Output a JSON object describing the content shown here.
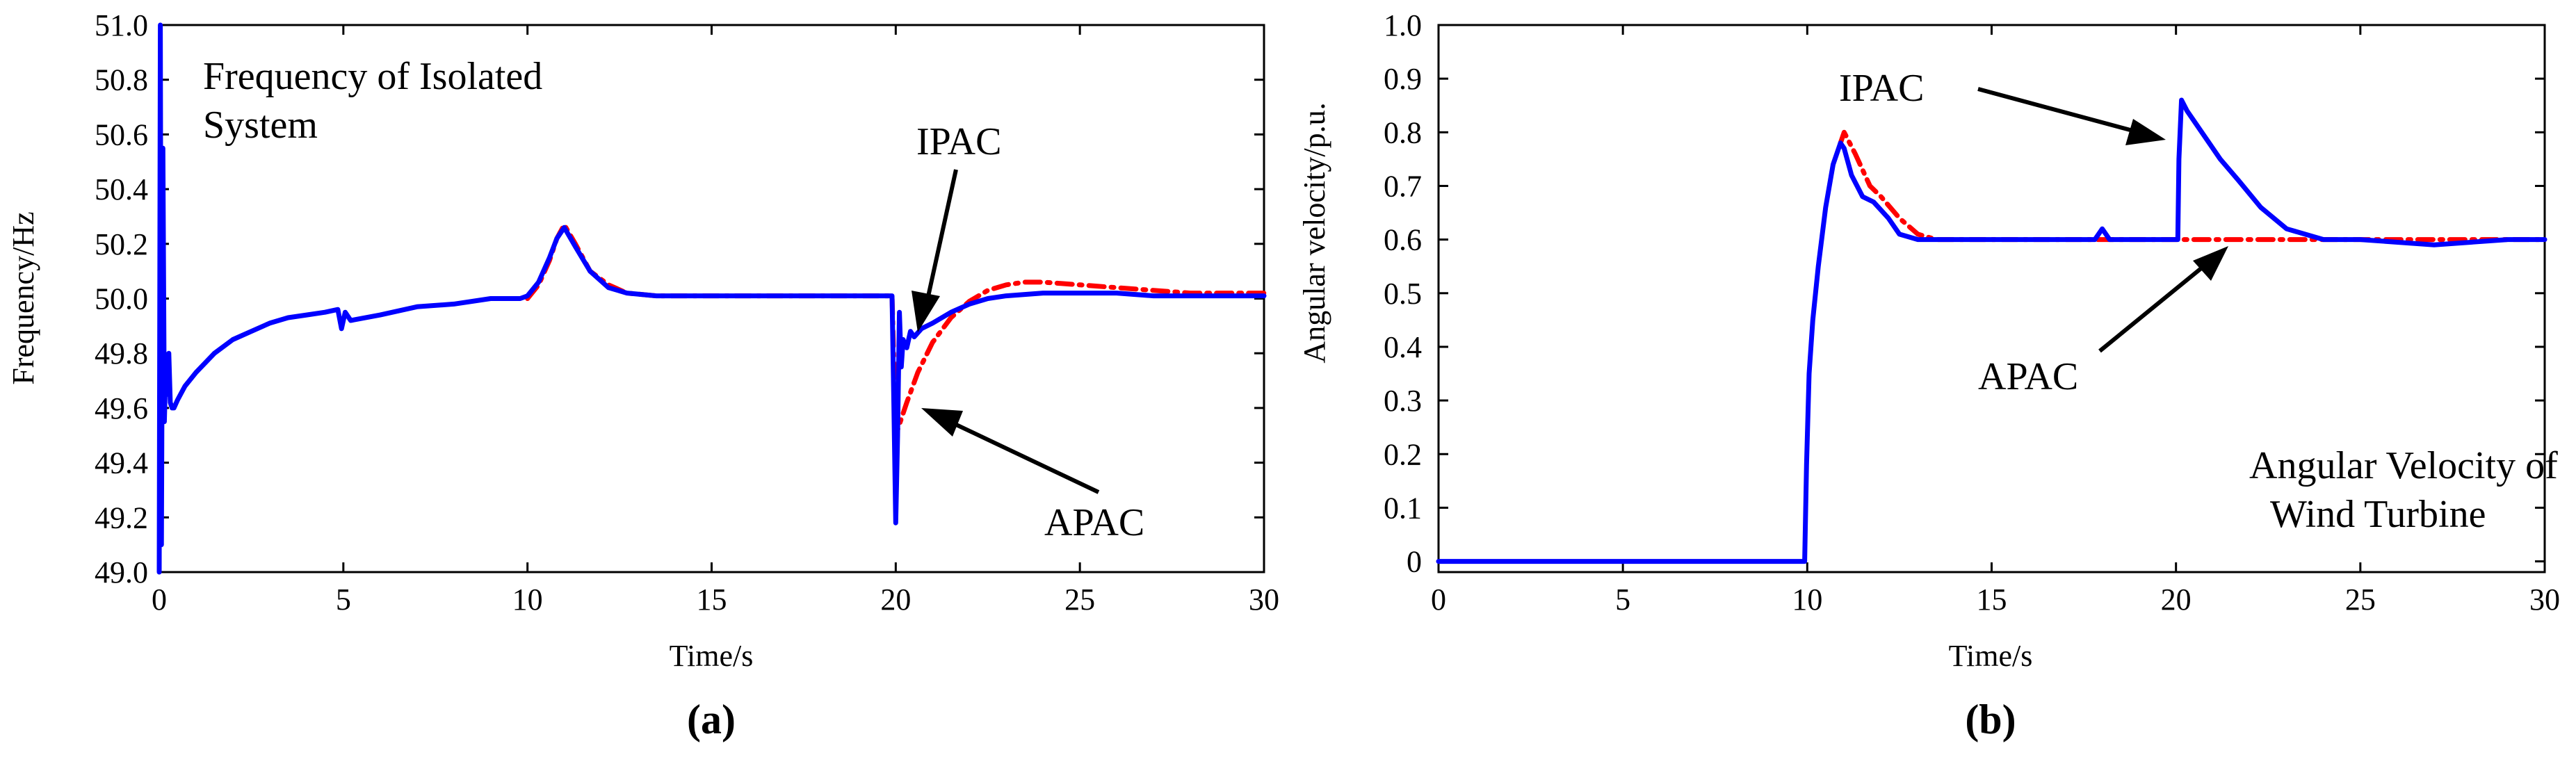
{
  "chart_data": [
    {
      "type": "line",
      "panel_label": "(a)",
      "xlabel": "Time/s",
      "ylabel": "Frequency/Hz",
      "xlim": [
        0,
        30
      ],
      "ylim": [
        49.0,
        51.0
      ],
      "xticks": [
        "0",
        "5",
        "10",
        "15",
        "20",
        "25",
        "30"
      ],
      "yticks": [
        "49.0",
        "49.2",
        "49.4",
        "49.6",
        "49.8",
        "50.0",
        "50.2",
        "50.4",
        "50.6",
        "50.8",
        "51.0"
      ],
      "xtick_values": [
        0,
        5,
        10,
        15,
        20,
        25,
        30
      ],
      "ytick_values": [
        49.0,
        49.2,
        49.4,
        49.6,
        49.8,
        50.0,
        50.2,
        50.4,
        50.6,
        50.8,
        51.0
      ],
      "annotations": {
        "title_line1": "Frequency of Isolated",
        "title_line2": "System",
        "ipac_label": "IPAC",
        "apac_label": "APAC"
      },
      "series": [
        {
          "name": "APAC",
          "color": "#ff0000",
          "style": "dashdot",
          "x": [
            10.0,
            10.3,
            10.6,
            10.8,
            11.0,
            11.3,
            11.7,
            12.2,
            12.7,
            13.5,
            15,
            17,
            19.9,
            20.0,
            20.1,
            20.3,
            20.6,
            21.0,
            21.5,
            22.0,
            22.5,
            23.0,
            23.5,
            24.0,
            25.0,
            26.0,
            27.0,
            28.0,
            29.0,
            30.0
          ],
          "y": [
            50.0,
            50.05,
            50.14,
            50.22,
            50.27,
            50.2,
            50.1,
            50.05,
            50.02,
            50.01,
            50.01,
            50.01,
            50.01,
            49.5,
            49.54,
            49.62,
            49.73,
            49.84,
            49.93,
            49.99,
            50.03,
            50.05,
            50.06,
            50.06,
            50.05,
            50.04,
            50.03,
            50.02,
            50.02,
            50.02
          ]
        },
        {
          "name": "IPAC",
          "color": "#0000ff",
          "style": "solid",
          "x": [
            0.0,
            0.03,
            0.06,
            0.1,
            0.14,
            0.18,
            0.22,
            0.26,
            0.3,
            0.35,
            0.4,
            0.5,
            0.7,
            1.0,
            1.5,
            2.0,
            2.5,
            3.0,
            3.5,
            4.0,
            4.5,
            4.85,
            4.95,
            5.0,
            5.05,
            5.2,
            6.0,
            7.0,
            8.0,
            9.0,
            9.8,
            10.0,
            10.3,
            10.6,
            10.8,
            11.0,
            11.3,
            11.7,
            12.2,
            12.7,
            13.5,
            15,
            17,
            19.9,
            19.95,
            20.0,
            20.05,
            20.1,
            20.15,
            20.2,
            20.3,
            20.4,
            20.5,
            20.7,
            21.0,
            21.5,
            22.0,
            22.5,
            23.0,
            24.0,
            25.0,
            26.0,
            27.0,
            28.0,
            29.0,
            30.0
          ],
          "y": [
            49.0,
            51.0,
            49.1,
            50.55,
            49.55,
            49.75,
            49.65,
            49.8,
            49.62,
            49.6,
            49.6,
            49.63,
            49.68,
            49.73,
            49.8,
            49.85,
            49.88,
            49.91,
            49.93,
            49.94,
            49.95,
            49.96,
            49.89,
            49.92,
            49.95,
            49.92,
            49.94,
            49.97,
            49.98,
            50.0,
            50.0,
            50.01,
            50.06,
            50.15,
            50.22,
            50.26,
            50.19,
            50.1,
            50.04,
            50.02,
            50.01,
            50.01,
            50.01,
            50.01,
            49.6,
            49.18,
            49.5,
            49.95,
            49.75,
            49.85,
            49.82,
            49.88,
            49.86,
            49.89,
            49.91,
            49.95,
            49.98,
            50.0,
            50.01,
            50.02,
            50.02,
            50.02,
            50.01,
            50.01,
            50.01,
            50.01
          ]
        }
      ]
    },
    {
      "type": "line",
      "panel_label": "(b)",
      "xlabel": "Time/s",
      "ylabel": "Angular velocity/p.u.",
      "xlim": [
        0,
        30
      ],
      "ylim": [
        -0.02,
        1.0
      ],
      "xticks": [
        "0",
        "5",
        "10",
        "15",
        "20",
        "25",
        "30"
      ],
      "yticks": [
        "0",
        "0.1",
        "0.2",
        "0.3",
        "0.4",
        "0.5",
        "0.6",
        "0.7",
        "0.8",
        "0.9",
        "1.0"
      ],
      "xtick_values": [
        0,
        5,
        10,
        15,
        20,
        25,
        30
      ],
      "ytick_values": [
        0.0,
        0.1,
        0.2,
        0.3,
        0.4,
        0.5,
        0.6,
        0.7,
        0.8,
        0.9,
        1.0
      ],
      "annotations": {
        "title_line1": "Angular Velocity of",
        "title_line2": "Wind Turbine",
        "ipac_label": "IPAC",
        "apac_label": "APAC"
      },
      "series": [
        {
          "name": "APAC",
          "color": "#ff0000",
          "style": "dashdot",
          "x": [
            10.9,
            11.0,
            11.3,
            11.7,
            12.0,
            12.5,
            13.0,
            13.5,
            14.5,
            16.0,
            18.0,
            20.0,
            22.0,
            24.0,
            26.0,
            28.0,
            30.0
          ],
          "y": [
            0.78,
            0.8,
            0.76,
            0.7,
            0.68,
            0.64,
            0.61,
            0.6,
            0.6,
            0.6,
            0.6,
            0.6,
            0.6,
            0.6,
            0.6,
            0.6,
            0.6
          ]
        },
        {
          "name": "IPAC",
          "color": "#0000ff",
          "style": "solid",
          "x": [
            0,
            9.93,
            9.98,
            10.05,
            10.15,
            10.3,
            10.5,
            10.7,
            10.9,
            11.0,
            11.2,
            11.5,
            11.8,
            12.2,
            12.5,
            13.0,
            13.5,
            15.0,
            17.0,
            17.8,
            18.0,
            18.2,
            19.0,
            20.05,
            20.08,
            20.15,
            20.3,
            20.5,
            20.8,
            21.2,
            21.7,
            22.3,
            23.0,
            24.0,
            25.0,
            27.0,
            29.0,
            30.0
          ],
          "y": [
            0.0,
            0.0,
            0.18,
            0.35,
            0.45,
            0.55,
            0.66,
            0.74,
            0.78,
            0.77,
            0.72,
            0.68,
            0.67,
            0.64,
            0.61,
            0.6,
            0.6,
            0.6,
            0.6,
            0.6,
            0.62,
            0.6,
            0.6,
            0.6,
            0.75,
            0.86,
            0.84,
            0.82,
            0.79,
            0.75,
            0.71,
            0.66,
            0.62,
            0.6,
            0.6,
            0.59,
            0.6,
            0.6
          ]
        }
      ]
    }
  ]
}
